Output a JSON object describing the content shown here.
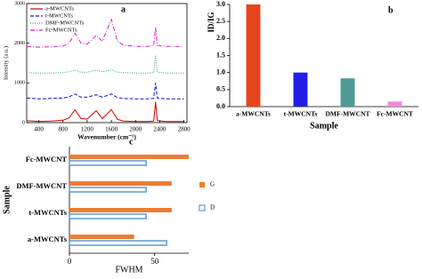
{
  "chart_data": [
    {
      "type": "line",
      "panel_label": "a",
      "xlabel": "Wavenumber (cm⁻¹)",
      "ylabel": "Intensity (a.u.)",
      "x": [
        200,
        400,
        600,
        800,
        900,
        1000,
        1100,
        1200,
        1350,
        1450,
        1600,
        1700,
        1800,
        2000,
        2200,
        2300,
        2330,
        2360,
        2500,
        2700,
        2800
      ],
      "xlim": [
        200,
        2850
      ],
      "xticks": [
        400,
        800,
        1200,
        1600,
        2000,
        2400,
        2800
      ],
      "ylim": [
        0,
        3000
      ],
      "yticks": [
        0,
        1000,
        2000,
        3000
      ],
      "legend": "upper left",
      "series": [
        {
          "name": "a-MWCNTs",
          "color": "#d00000",
          "dash": "solid",
          "values": [
            50,
            30,
            40,
            60,
            120,
            320,
            100,
            90,
            300,
            100,
            330,
            80,
            40,
            30,
            30,
            40,
            520,
            50,
            30,
            30,
            30
          ]
        },
        {
          "name": "t-MWCNTs",
          "color": "#1010c0",
          "dash": "dashed",
          "values": [
            620,
            600,
            610,
            620,
            650,
            720,
            640,
            640,
            700,
            640,
            720,
            630,
            610,
            600,
            600,
            610,
            1000,
            620,
            600,
            600,
            600
          ]
        },
        {
          "name": "DMF-MWCNTs",
          "color": "#2a9a9a",
          "dash": "dotted",
          "values": [
            1260,
            1250,
            1250,
            1260,
            1280,
            1320,
            1270,
            1270,
            1320,
            1280,
            1330,
            1270,
            1260,
            1250,
            1250,
            1260,
            1700,
            1270,
            1250,
            1250,
            1250
          ]
        },
        {
          "name": "Fc-MWCNTs",
          "color": "#d020c0",
          "dash": "dashdot",
          "values": [
            1920,
            1900,
            1910,
            1930,
            2000,
            2250,
            2000,
            1980,
            2200,
            2050,
            2600,
            2050,
            1950,
            1920,
            1920,
            1940,
            2400,
            1950,
            1920,
            1920,
            1920
          ]
        }
      ]
    },
    {
      "type": "bar",
      "panel_label": "b",
      "xlabel": "Sample",
      "ylabel": "ID/IG",
      "categories": [
        "a-MWCNTs",
        "t-MWCNTs",
        "DMF-MWCNT",
        "Fc-MWCNT"
      ],
      "values": [
        3.0,
        1.0,
        0.83,
        0.15
      ],
      "colors": [
        "#e8431f",
        "#1f1fe8",
        "#4f9a94",
        "#f08ad8"
      ],
      "ylim": [
        0,
        3
      ],
      "yticks": [
        {
          "value": 0,
          "label": "0.0"
        },
        {
          "value": 0.5,
          "label": "0.5"
        },
        {
          "value": 1,
          "label": "1.0"
        },
        {
          "value": 1.5,
          "label": "1.5"
        },
        {
          "value": 2,
          "label": "2.0"
        },
        {
          "value": 2.5,
          "label": "2.5"
        },
        {
          "value": 3,
          "label": "3.0"
        }
      ]
    },
    {
      "type": "hbar",
      "panel_label": "c",
      "xlabel": "FWHM",
      "ylabel": "Sample",
      "categories": [
        "a-MWCNTs",
        "t-MWCNTs",
        "DMF-MWCNT",
        "Fc-MWCNT"
      ],
      "xlim": [
        0,
        70
      ],
      "xticks": [
        0,
        50
      ],
      "legend": "right",
      "series": [
        {
          "name": "G",
          "color": "#ed7d31",
          "fill": true,
          "values": [
            38,
            60,
            60,
            70
          ]
        },
        {
          "name": "D",
          "color": "#5b9bd5",
          "fill": false,
          "values": [
            57,
            45,
            45,
            45
          ]
        }
      ]
    }
  ]
}
